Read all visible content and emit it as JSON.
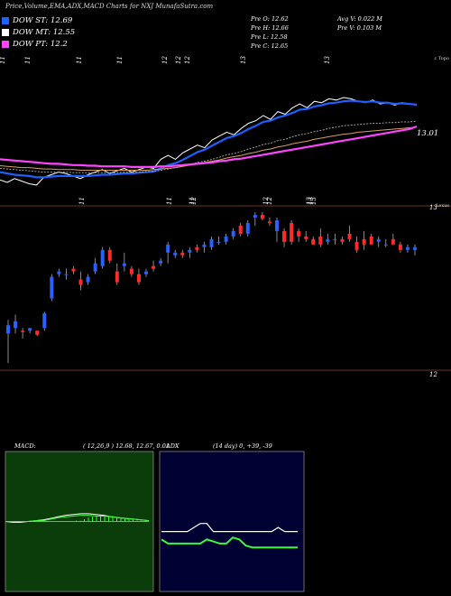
{
  "header": {
    "title": "Price,Volume,EMA,ADX,MACD Charts for NXJ MunafaSutra.com",
    "legend": [
      {
        "label": "DOW ST: 12.69",
        "color": "#1e60ff"
      },
      {
        "label": "DOW MT: 12.55",
        "color": "#ffffff"
      },
      {
        "label": "DOW PT: 12.2",
        "color": "#ff44ff"
      }
    ],
    "ohlc": {
      "open": "Pre   O: 12.62",
      "high": "Pre   H: 12.66",
      "low": "Pre   L: 12.58",
      "close": "Pre   C: 12.65",
      "avg_volume": "Avg V: 0.022  M",
      "prev_volume": "Pre   V: 0.103 M"
    }
  },
  "chart_data": [
    {
      "type": "line",
      "panel": "ema",
      "x_tick_labels": [
        "11",
        "11",
        "11",
        "11",
        "12",
        "12",
        "12",
        "13",
        "13"
      ],
      "corner_label": "c Topo",
      "last_value_label": "13.01",
      "series": [
        {
          "color": "#ffffff",
          "values": [
            12.18,
            12.14,
            12.2,
            12.16,
            12.12,
            12.1,
            12.22,
            12.26,
            12.3,
            12.28,
            12.24,
            12.2,
            12.26,
            12.3,
            12.34,
            12.28,
            12.32,
            12.36,
            12.3,
            12.34,
            12.38,
            12.36,
            12.5,
            12.56,
            12.5,
            12.6,
            12.66,
            12.72,
            12.68,
            12.8,
            12.86,
            12.92,
            12.88,
            12.98,
            13.06,
            13.1,
            13.18,
            13.12,
            13.24,
            13.2,
            13.3,
            13.36,
            13.3,
            13.4,
            13.38,
            13.44,
            13.42,
            13.46,
            13.44,
            13.4,
            13.38,
            13.42,
            13.36,
            13.38,
            13.34,
            13.38,
            13.36,
            13.34
          ]
        },
        {
          "color": "#1e60ff",
          "values": [
            12.3,
            12.28,
            12.26,
            12.25,
            12.24,
            12.22,
            12.22,
            12.23,
            12.24,
            12.24,
            12.24,
            12.24,
            12.24,
            12.25,
            12.26,
            12.26,
            12.27,
            12.28,
            12.28,
            12.29,
            12.3,
            12.31,
            12.36,
            12.41,
            12.44,
            12.49,
            12.55,
            12.61,
            12.65,
            12.71,
            12.77,
            12.83,
            12.86,
            12.91,
            12.97,
            13.02,
            13.08,
            13.1,
            13.15,
            13.18,
            13.22,
            13.27,
            13.28,
            13.32,
            13.34,
            13.37,
            13.38,
            13.4,
            13.41,
            13.4,
            13.39,
            13.4,
            13.38,
            13.38,
            13.36,
            13.37,
            13.36,
            13.35
          ]
        },
        {
          "color": "#a0a0a0",
          "values": [
            12.36,
            12.35,
            12.34,
            12.33,
            12.32,
            12.31,
            12.3,
            12.3,
            12.3,
            12.3,
            12.29,
            12.29,
            12.29,
            12.29,
            12.29,
            12.29,
            12.29,
            12.3,
            12.3,
            12.3,
            12.31,
            12.31,
            12.33,
            12.35,
            12.37,
            12.39,
            12.42,
            12.45,
            12.47,
            12.5,
            12.53,
            12.57,
            12.59,
            12.62,
            12.66,
            12.69,
            12.73,
            12.75,
            12.79,
            12.81,
            12.85,
            12.88,
            12.9,
            12.93,
            12.95,
            12.98,
            13.0,
            13.02,
            13.03,
            13.04,
            13.05,
            13.06,
            13.06,
            13.07,
            13.07,
            13.08,
            13.08,
            13.09
          ]
        },
        {
          "color": "#d4a05a",
          "values": [
            12.4,
            12.39,
            12.38,
            12.37,
            12.37,
            12.36,
            12.35,
            12.35,
            12.34,
            12.34,
            12.34,
            12.33,
            12.33,
            12.33,
            12.33,
            12.33,
            12.33,
            12.33,
            12.33,
            12.33,
            12.33,
            12.34,
            12.35,
            12.36,
            12.37,
            12.39,
            12.41,
            12.43,
            12.45,
            12.47,
            12.49,
            12.52,
            12.54,
            12.56,
            12.59,
            12.61,
            12.64,
            12.66,
            12.69,
            12.71,
            12.74,
            12.76,
            12.78,
            12.81,
            12.83,
            12.85,
            12.87,
            12.89,
            12.9,
            12.92,
            12.93,
            12.94,
            12.95,
            12.96,
            12.97,
            12.98,
            12.99,
            13.0
          ]
        },
        {
          "color": "#ff44ff",
          "values": [
            12.5,
            12.49,
            12.48,
            12.47,
            12.46,
            12.45,
            12.44,
            12.43,
            12.43,
            12.42,
            12.41,
            12.41,
            12.4,
            12.4,
            12.39,
            12.39,
            12.39,
            12.39,
            12.38,
            12.38,
            12.38,
            12.38,
            12.39,
            12.39,
            12.4,
            12.41,
            12.42,
            12.43,
            12.44,
            12.45,
            12.47,
            12.48,
            12.5,
            12.51,
            12.53,
            12.55,
            12.57,
            12.59,
            12.61,
            12.63,
            12.65,
            12.67,
            12.69,
            12.71,
            12.73,
            12.75,
            12.77,
            12.79,
            12.81,
            12.83,
            12.85,
            12.87,
            12.89,
            12.91,
            12.93,
            12.95,
            12.97,
            13.01
          ]
        }
      ]
    },
    {
      "type": "candlestick",
      "panel": "price",
      "x_tick_labels": [
        "11",
        "11",
        "11",
        "12",
        "12",
        "12",
        "13",
        "13",
        "13"
      ],
      "y_tick_labels": [
        "13",
        "12"
      ],
      "corner_label": "Lexus",
      "candles": [
        {
          "o": 12.34,
          "h": 12.44,
          "l": 12.12,
          "c": 12.4
        },
        {
          "o": 12.38,
          "h": 12.48,
          "l": 12.34,
          "c": 12.43
        },
        {
          "o": 12.36,
          "h": 12.38,
          "l": 12.3,
          "c": 12.35
        },
        {
          "o": 12.36,
          "h": 12.38,
          "l": 12.34,
          "c": 12.38
        },
        {
          "o": 12.36,
          "h": 12.36,
          "l": 12.32,
          "c": 12.33
        },
        {
          "o": 12.38,
          "h": 12.5,
          "l": 12.36,
          "c": 12.49
        },
        {
          "o": 12.6,
          "h": 12.78,
          "l": 12.58,
          "c": 12.76
        },
        {
          "o": 12.78,
          "h": 12.82,
          "l": 12.76,
          "c": 12.8
        },
        {
          "o": 12.78,
          "h": 12.82,
          "l": 12.74,
          "c": 12.78
        },
        {
          "o": 12.82,
          "h": 12.84,
          "l": 12.78,
          "c": 12.8
        },
        {
          "o": 12.74,
          "h": 12.8,
          "l": 12.66,
          "c": 12.7
        },
        {
          "o": 12.72,
          "h": 12.78,
          "l": 12.7,
          "c": 12.76
        },
        {
          "o": 12.8,
          "h": 12.9,
          "l": 12.78,
          "c": 12.86
        },
        {
          "o": 12.84,
          "h": 12.98,
          "l": 12.82,
          "c": 12.96
        },
        {
          "o": 12.96,
          "h": 12.98,
          "l": 12.86,
          "c": 12.88
        },
        {
          "o": 12.8,
          "h": 12.86,
          "l": 12.7,
          "c": 12.72
        },
        {
          "o": 12.84,
          "h": 12.94,
          "l": 12.8,
          "c": 12.86
        },
        {
          "o": 12.82,
          "h": 12.84,
          "l": 12.76,
          "c": 12.78
        },
        {
          "o": 12.78,
          "h": 12.82,
          "l": 12.7,
          "c": 12.72
        },
        {
          "o": 12.78,
          "h": 12.82,
          "l": 12.76,
          "c": 12.8
        },
        {
          "o": 12.84,
          "h": 12.88,
          "l": 12.8,
          "c": 12.82
        },
        {
          "o": 12.86,
          "h": 12.9,
          "l": 12.84,
          "c": 12.88
        },
        {
          "o": 12.94,
          "h": 13.02,
          "l": 12.86,
          "c": 13.0
        },
        {
          "o": 12.92,
          "h": 12.96,
          "l": 12.9,
          "c": 12.94
        },
        {
          "o": 12.94,
          "h": 12.96,
          "l": 12.9,
          "c": 12.92
        },
        {
          "o": 12.94,
          "h": 12.98,
          "l": 12.9,
          "c": 12.96
        },
        {
          "o": 12.98,
          "h": 13.0,
          "l": 12.94,
          "c": 12.96
        },
        {
          "o": 12.98,
          "h": 13.02,
          "l": 12.94,
          "c": 13.0
        },
        {
          "o": 12.98,
          "h": 13.06,
          "l": 12.96,
          "c": 13.04
        },
        {
          "o": 13.02,
          "h": 13.06,
          "l": 13.0,
          "c": 13.02
        },
        {
          "o": 13.02,
          "h": 13.08,
          "l": 13.0,
          "c": 13.06
        },
        {
          "o": 13.06,
          "h": 13.12,
          "l": 13.04,
          "c": 13.1
        },
        {
          "o": 13.14,
          "h": 13.16,
          "l": 13.06,
          "c": 13.08
        },
        {
          "o": 13.08,
          "h": 13.18,
          "l": 13.06,
          "c": 13.16
        },
        {
          "o": 13.2,
          "h": 13.24,
          "l": 13.14,
          "c": 13.22
        },
        {
          "o": 13.22,
          "h": 13.24,
          "l": 13.18,
          "c": 13.19
        },
        {
          "o": 13.17,
          "h": 13.2,
          "l": 13.14,
          "c": 13.16
        },
        {
          "o": 13.1,
          "h": 13.2,
          "l": 13.02,
          "c": 13.18
        },
        {
          "o": 13.1,
          "h": 13.12,
          "l": 12.98,
          "c": 13.02
        },
        {
          "o": 13.16,
          "h": 13.18,
          "l": 13.0,
          "c": 13.02
        },
        {
          "o": 13.1,
          "h": 13.12,
          "l": 13.02,
          "c": 13.06
        },
        {
          "o": 13.06,
          "h": 13.1,
          "l": 13.02,
          "c": 13.04
        },
        {
          "o": 13.04,
          "h": 13.06,
          "l": 13.0,
          "c": 13.0
        },
        {
          "o": 13.06,
          "h": 13.12,
          "l": 12.98,
          "c": 13.0
        },
        {
          "o": 13.02,
          "h": 13.08,
          "l": 13.0,
          "c": 13.04
        },
        {
          "o": 13.04,
          "h": 13.08,
          "l": 13.0,
          "c": 13.04
        },
        {
          "o": 13.04,
          "h": 13.06,
          "l": 13.0,
          "c": 13.02
        },
        {
          "o": 13.08,
          "h": 13.14,
          "l": 13.02,
          "c": 13.04
        },
        {
          "o": 13.02,
          "h": 13.06,
          "l": 12.94,
          "c": 12.96
        },
        {
          "o": 13.04,
          "h": 13.1,
          "l": 12.96,
          "c": 13.0
        },
        {
          "o": 13.06,
          "h": 13.08,
          "l": 13.0,
          "c": 13.0
        },
        {
          "o": 13.02,
          "h": 13.06,
          "l": 12.98,
          "c": 13.04
        },
        {
          "o": 13.0,
          "h": 13.04,
          "l": 12.98,
          "c": 13.0
        },
        {
          "o": 13.04,
          "h": 13.08,
          "l": 13.0,
          "c": 13.0
        },
        {
          "o": 13.0,
          "h": 13.02,
          "l": 12.94,
          "c": 12.96
        },
        {
          "o": 12.96,
          "h": 13.0,
          "l": 12.94,
          "c": 12.98
        },
        {
          "o": 12.96,
          "h": 13.0,
          "l": 12.92,
          "c": 12.98
        }
      ]
    },
    {
      "type": "line",
      "panel": "macd",
      "label": "MACD:",
      "params": "( 12,26,9 ) 12.68,  12.67,  0.01",
      "series": [
        {
          "color": "#ffffff",
          "values": [
            0,
            -0.01,
            -0.01,
            0,
            0.01,
            0.02,
            0.04,
            0.06,
            0.08,
            0.09,
            0.1,
            0.1,
            0.09,
            0.08,
            0.06,
            0.05,
            0.04,
            0.03,
            0.02,
            0.01
          ]
        },
        {
          "color": "#33ff33",
          "values": [
            0,
            0,
            0,
            0,
            0.01,
            0.01,
            0.03,
            0.05,
            0.06,
            0.07,
            0.08,
            0.08,
            0.07,
            0.07,
            0.06,
            0.05,
            0.04,
            0.03,
            0.02,
            0.01
          ]
        }
      ]
    },
    {
      "type": "line",
      "panel": "adx",
      "label": "ADX",
      "params": "(14  day) 0, +39, -39",
      "series": [
        {
          "color": "#ffffff",
          "values": [
            20,
            20,
            20,
            20,
            20,
            22,
            24,
            24,
            20,
            20,
            20,
            20,
            20,
            20,
            20,
            20,
            20,
            20,
            22,
            20,
            20,
            20
          ]
        },
        {
          "color": "#33ff33",
          "values": [
            16,
            14,
            14,
            14,
            14,
            14,
            14,
            16,
            15,
            14,
            14,
            17,
            16,
            13,
            12,
            12,
            12,
            12,
            12,
            12,
            12,
            12
          ]
        }
      ]
    }
  ]
}
